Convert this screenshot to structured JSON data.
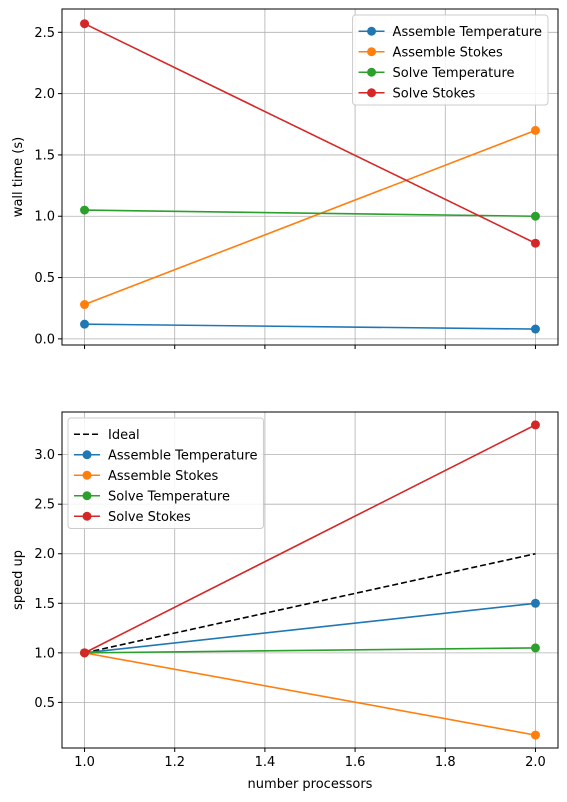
{
  "chart_data": [
    {
      "type": "line",
      "title": "",
      "xlabel": "",
      "ylabel": "wall time (s)",
      "x": [
        1.0,
        2.0
      ],
      "xlim": [
        0.95,
        2.05
      ],
      "ylim": [
        -0.05,
        2.69
      ],
      "yticks": [
        0.0,
        0.5,
        1.0,
        1.5,
        2.0,
        2.5
      ],
      "ytick_labels": [
        "0.0",
        "0.5",
        "1.0",
        "1.5",
        "2.0",
        "2.5"
      ],
      "xticks": [
        1.0,
        1.2,
        1.4,
        1.6,
        1.8,
        2.0
      ],
      "show_xtick_labels": false,
      "grid": true,
      "legend_position": "upper right",
      "series": [
        {
          "name": "Assemble Temperature",
          "values": [
            0.12,
            0.08
          ],
          "color": "#1f77b4",
          "marker": "circle",
          "dashed": false
        },
        {
          "name": "Assemble Stokes",
          "values": [
            0.28,
            1.7
          ],
          "color": "#ff7f0e",
          "marker": "circle",
          "dashed": false
        },
        {
          "name": "Solve Temperature",
          "values": [
            1.05,
            1.0
          ],
          "color": "#2ca02c",
          "marker": "circle",
          "dashed": false
        },
        {
          "name": "Solve Stokes",
          "values": [
            2.57,
            0.78
          ],
          "color": "#d62728",
          "marker": "circle",
          "dashed": false
        }
      ]
    },
    {
      "type": "line",
      "title": "",
      "xlabel": "number processors",
      "ylabel": "speed up",
      "x": [
        1.0,
        2.0
      ],
      "xlim": [
        0.95,
        2.05
      ],
      "ylim": [
        0.04,
        3.43
      ],
      "yticks": [
        0.5,
        1.0,
        1.5,
        2.0,
        2.5,
        3.0
      ],
      "ytick_labels": [
        "0.5",
        "1.0",
        "1.5",
        "2.0",
        "2.5",
        "3.0"
      ],
      "xticks": [
        1.0,
        1.2,
        1.4,
        1.6,
        1.8,
        2.0
      ],
      "xtick_labels": [
        "1.0",
        "1.2",
        "1.4",
        "1.6",
        "1.8",
        "2.0"
      ],
      "show_xtick_labels": true,
      "grid": true,
      "legend_position": "upper left",
      "series": [
        {
          "name": "Ideal",
          "values": [
            1.0,
            2.0
          ],
          "color": "#000000",
          "marker": "none",
          "dashed": true
        },
        {
          "name": "Assemble Temperature",
          "values": [
            1.0,
            1.5
          ],
          "color": "#1f77b4",
          "marker": "circle",
          "dashed": false
        },
        {
          "name": "Assemble Stokes",
          "values": [
            1.0,
            0.17
          ],
          "color": "#ff7f0e",
          "marker": "circle",
          "dashed": false
        },
        {
          "name": "Solve Temperature",
          "values": [
            1.0,
            1.05
          ],
          "color": "#2ca02c",
          "marker": "circle",
          "dashed": false
        },
        {
          "name": "Solve Stokes",
          "values": [
            1.0,
            3.3
          ],
          "color": "#d62728",
          "marker": "circle",
          "dashed": false
        }
      ]
    }
  ]
}
